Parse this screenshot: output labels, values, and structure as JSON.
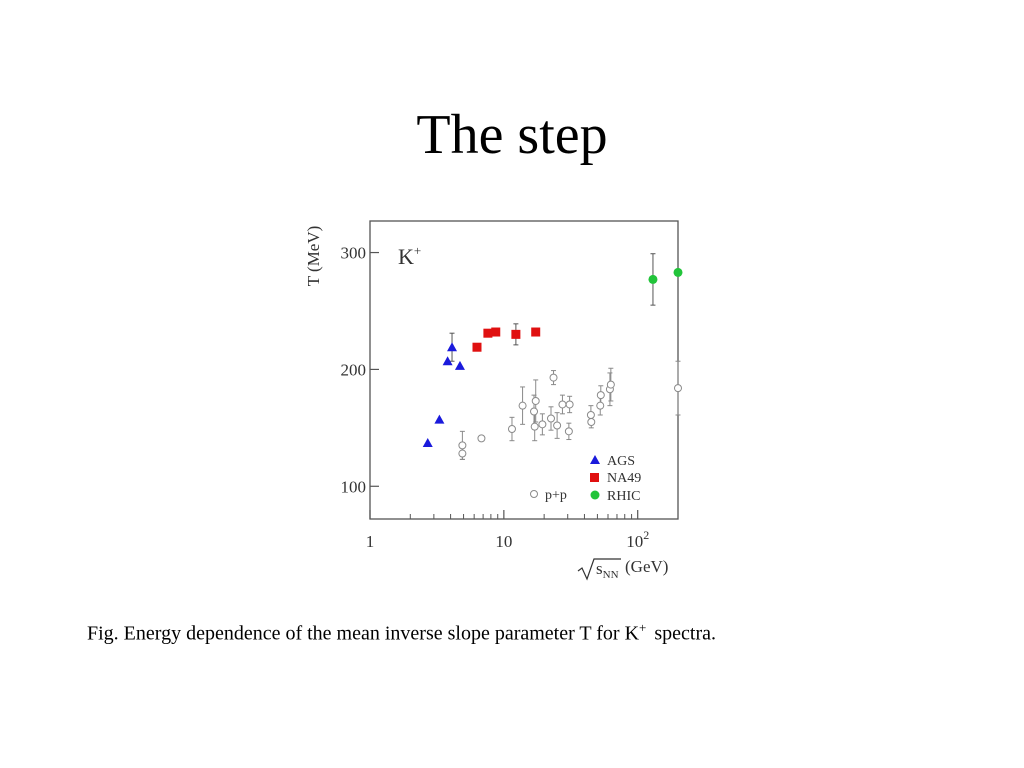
{
  "slide": {
    "title": "The step",
    "caption": {
      "main": "Fig. Energy dependence of the mean inverse slope parameter T for K",
      "superscript": "+",
      "tail": "spectra."
    }
  },
  "chart_data": {
    "type": "scatter",
    "title": "",
    "panel_label": {
      "base": "K",
      "sup": "+"
    },
    "xlabel": {
      "radical": "s",
      "subscript": "NN",
      "unit": "(GeV)"
    },
    "ylabel": "T (MeV)",
    "xscale": "log",
    "xlim": [
      1,
      200
    ],
    "ylim": [
      72,
      327
    ],
    "xtick_labels": [
      {
        "value": 1,
        "base": "1",
        "exp": ""
      },
      {
        "value": 10,
        "base": "10",
        "exp": ""
      },
      {
        "value": 100,
        "base": "10",
        "exp": "2"
      }
    ],
    "ytick_labels": [
      {
        "value": 100,
        "label": "100"
      },
      {
        "value": 200,
        "label": "200"
      },
      {
        "value": 300,
        "label": "300"
      }
    ],
    "grid": false,
    "legend_position": "bottom-right",
    "series": [
      {
        "name": "AGS",
        "marker": "triangle",
        "color": "#1a1adc",
        "points": [
          {
            "x": 2.7,
            "y": 137
          },
          {
            "x": 3.3,
            "y": 157
          },
          {
            "x": 3.8,
            "y": 207
          },
          {
            "x": 4.1,
            "y": 219,
            "err": 12
          },
          {
            "x": 4.7,
            "y": 203
          }
        ]
      },
      {
        "name": "NA49",
        "marker": "square",
        "color": "#e01010",
        "points": [
          {
            "x": 6.3,
            "y": 219
          },
          {
            "x": 7.6,
            "y": 231
          },
          {
            "x": 8.7,
            "y": 232
          },
          {
            "x": 12.3,
            "y": 230,
            "err": 9
          },
          {
            "x": 17.3,
            "y": 232
          }
        ]
      },
      {
        "name": "RHIC",
        "marker": "circle",
        "color": "#22c43a",
        "points": [
          {
            "x": 130,
            "y": 277,
            "err": 22
          },
          {
            "x": 200,
            "y": 283
          }
        ]
      },
      {
        "name": "p+p",
        "marker": "open-circle",
        "color": "#8a8a8a",
        "points": [
          {
            "x": 4.9,
            "y": 135,
            "err": 12
          },
          {
            "x": 4.9,
            "y": 128,
            "err": 5
          },
          {
            "x": 6.8,
            "y": 141
          },
          {
            "x": 11.5,
            "y": 149,
            "err": 10
          },
          {
            "x": 13.8,
            "y": 169,
            "err": 16
          },
          {
            "x": 16.8,
            "y": 164,
            "err": 14
          },
          {
            "x": 17.3,
            "y": 173,
            "err": 18
          },
          {
            "x": 17.0,
            "y": 151,
            "err": 12
          },
          {
            "x": 19.4,
            "y": 153,
            "err": 9
          },
          {
            "x": 22.5,
            "y": 158,
            "err": 10
          },
          {
            "x": 23.5,
            "y": 193,
            "err": 6
          },
          {
            "x": 25.0,
            "y": 152,
            "err": 11
          },
          {
            "x": 27.4,
            "y": 170,
            "err": 8
          },
          {
            "x": 30.6,
            "y": 147,
            "err": 7
          },
          {
            "x": 31.0,
            "y": 170,
            "err": 7
          },
          {
            "x": 44.7,
            "y": 161,
            "err": 8
          },
          {
            "x": 45.0,
            "y": 155,
            "err": 5
          },
          {
            "x": 52.5,
            "y": 169,
            "err": 8
          },
          {
            "x": 53.0,
            "y": 178,
            "err": 8
          },
          {
            "x": 62.0,
            "y": 183,
            "err": 14
          },
          {
            "x": 63.0,
            "y": 187,
            "err": 14
          },
          {
            "x": 200,
            "y": 184,
            "err": 23
          }
        ]
      }
    ]
  }
}
